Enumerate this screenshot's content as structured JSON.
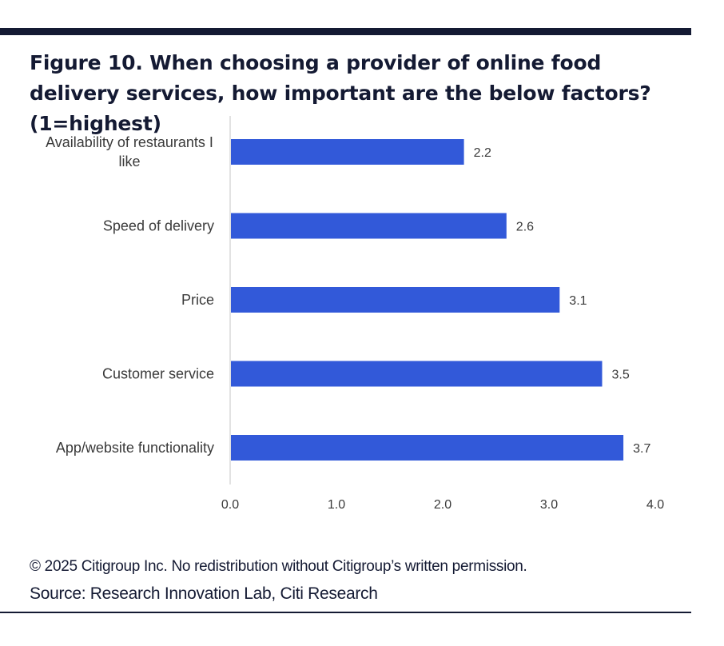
{
  "figure": {
    "title": "Figure 10. When choosing a provider of online food delivery services, how important are the below factors?  (1=highest)"
  },
  "chart_data": {
    "type": "bar",
    "orientation": "horizontal",
    "title": "Figure 10. When choosing a provider of online food delivery services, how important are the below factors?  (1=highest)",
    "categories": [
      "Availability of restaurants I like",
      "Speed of delivery",
      "Price",
      "Customer service",
      "App/website functionality"
    ],
    "category_lines": [
      [
        "Availability of restaurants I",
        "like"
      ],
      [
        "Speed of delivery"
      ],
      [
        "Price"
      ],
      [
        "Customer service"
      ],
      [
        "App/website functionality"
      ]
    ],
    "values": [
      2.2,
      2.6,
      3.1,
      3.5,
      3.7
    ],
    "data_labels": [
      "2.2",
      "2.6",
      "3.1",
      "3.5",
      "3.7"
    ],
    "xlim": [
      0,
      4
    ],
    "xticks": [
      0,
      1,
      2,
      3,
      4
    ],
    "xtick_labels": [
      "0.0",
      "1.0",
      "2.0",
      "3.0",
      "4.0"
    ],
    "xlabel": "",
    "ylabel": "",
    "grid": false,
    "legend": "none",
    "bar_color": "#3259d9",
    "axis_color": "#d9d9d9"
  },
  "footer": {
    "copyright": "© 2025 Citigroup Inc. No redistribution without Citigroup’s written permission.",
    "source": "Source: Research Innovation Lab, Citi Research"
  }
}
